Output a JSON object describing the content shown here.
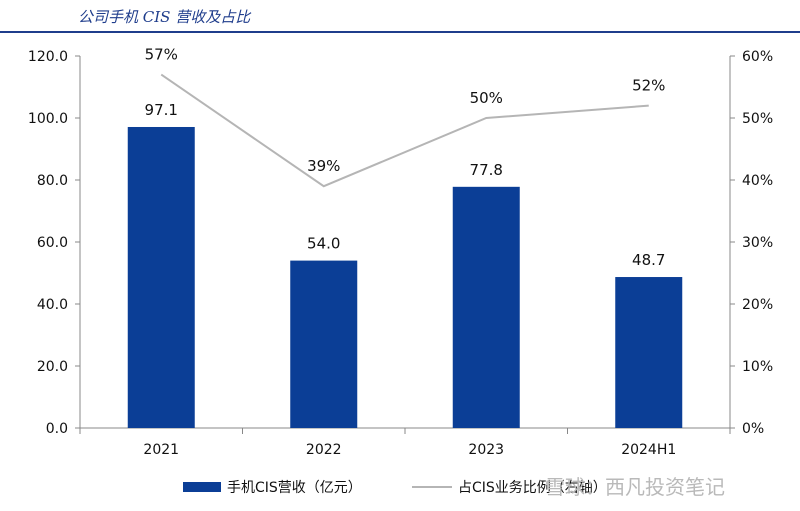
{
  "header": {
    "title": "公司手机 CIS 营收及占比"
  },
  "chart_data": {
    "type": "bar+line",
    "categories": [
      "2021",
      "2022",
      "2023",
      "2024H1"
    ],
    "series": [
      {
        "name": "手机CIS营收（亿元）",
        "type": "bar",
        "axis": "left",
        "color": "#0b3e96",
        "values": [
          97.1,
          54.0,
          77.8,
          48.7
        ],
        "labels": [
          "97.1",
          "54.0",
          "77.8",
          "48.7"
        ]
      },
      {
        "name": "占CIS业务比例（右轴）",
        "type": "line",
        "axis": "right",
        "color": "#b5b5b5",
        "values": [
          57,
          39,
          50,
          52
        ],
        "labels": [
          "57%",
          "39%",
          "50%",
          "52%"
        ]
      }
    ],
    "y_left": {
      "min": 0,
      "max": 120,
      "ticks": [
        "0.0",
        "20.0",
        "40.0",
        "60.0",
        "80.0",
        "100.0",
        "120.0"
      ]
    },
    "y_right": {
      "min": 0,
      "max": 60,
      "ticks": [
        "0%",
        "10%",
        "20%",
        "30%",
        "40%",
        "50%",
        "60%"
      ]
    },
    "legend_position": "bottom"
  },
  "watermark": {
    "text": "雪球：西凡投资笔记"
  }
}
